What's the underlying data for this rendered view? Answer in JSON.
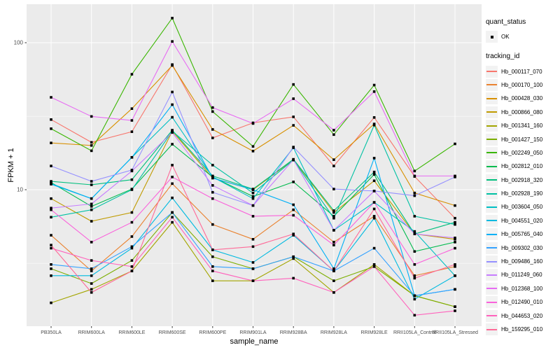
{
  "figure": {
    "background": "#FFFFFF",
    "panel_background": "#EBEBEB",
    "grid_color": "#FFFFFF",
    "axis_text_color": "#4D4D4D",
    "tick_color": "#333333"
  },
  "axes": {
    "x_title": "sample_name",
    "y_title": "FPKM + 1",
    "y_scale": "log10",
    "y_major_ticks": [
      {
        "label": "100",
        "value": 100
      },
      {
        "label": "10",
        "value": 10
      }
    ],
    "y_minor_breaks": [
      31.6,
      3.16
    ]
  },
  "legend": {
    "quant_title": "quant_status",
    "quant_items": [
      {
        "label": "OK",
        "glyph": "black-point"
      }
    ],
    "tracking_title": "tracking_id"
  },
  "chart_data": {
    "type": "line",
    "title": "",
    "xlabel": "sample_name",
    "ylabel": "FPKM + 1",
    "yscale": "log10",
    "ylim": [
      1.15,
      185
    ],
    "grid": true,
    "legend_position": "right",
    "marker": "black-square",
    "categories": [
      "PB350LA",
      "RRIM600LA",
      "RRIM600LE",
      "RRIM600SE",
      "RRIM600PE",
      "RRIM901LA",
      "RRIM928BA",
      "RRIM928LA",
      "RRIM928LE",
      "RRII105LA_Control",
      "RRII105LA_Stressed"
    ],
    "series": [
      {
        "name": "Hb_000117_070",
        "color": "#F8766D",
        "values": [
          30,
          21,
          24.8,
          71,
          22.5,
          28.5,
          31.3,
          14.5,
          31,
          12.3,
          6.4
        ]
      },
      {
        "name": "Hb_000170_100",
        "color": "#EA8331",
        "values": [
          4.9,
          2.8,
          4.8,
          11,
          5.8,
          4.6,
          7.3,
          4.4,
          6.6,
          2.6,
          3.0
        ]
      },
      {
        "name": "Hb_000428_030",
        "color": "#D89000",
        "values": [
          20.8,
          20,
          35.6,
          70,
          25.7,
          18.3,
          27.4,
          16,
          28,
          9.5,
          7.8
        ]
      },
      {
        "name": "Hb_000866_080",
        "color": "#C09B00",
        "values": [
          8.7,
          6.1,
          7.0,
          25,
          12,
          10,
          16,
          7.0,
          11.5,
          5.0,
          4.6
        ]
      },
      {
        "name": "Hb_001341_160",
        "color": "#A3A500",
        "values": [
          1.7,
          2.1,
          2.8,
          6.0,
          2.4,
          2.4,
          3.4,
          2.0,
          3.1,
          1.9,
          1.6
        ]
      },
      {
        "name": "Hb_001427_150",
        "color": "#7CAE00",
        "values": [
          2.9,
          2.3,
          3.3,
          7.0,
          3.5,
          2.9,
          3.5,
          2.4,
          3.0,
          1.9,
          1.6
        ]
      },
      {
        "name": "Hb_002249_050",
        "color": "#39B600",
        "values": [
          26,
          18.4,
          61,
          147,
          34,
          19.7,
          52,
          23.7,
          51.5,
          13.4,
          20.5
        ]
      },
      {
        "name": "Hb_002812_010",
        "color": "#00BB4E",
        "values": [
          11.2,
          7.7,
          10.1,
          20.4,
          12.2,
          9.0,
          11.3,
          6.6,
          12.7,
          3.8,
          4.4
        ]
      },
      {
        "name": "Hb_002918_320",
        "color": "#00BF7D",
        "values": [
          11.4,
          10.8,
          11.7,
          25.4,
          12.4,
          10.1,
          16.1,
          7.2,
          13.2,
          5.0,
          6.0
        ]
      },
      {
        "name": "Hb_002928_190",
        "color": "#00C1A3",
        "values": [
          6.5,
          7.3,
          10.0,
          25.0,
          14.7,
          9.5,
          15.9,
          6.4,
          27.5,
          6.6,
          5.8
        ]
      },
      {
        "name": "Hb_003604_050",
        "color": "#00BFC4",
        "values": [
          11.0,
          8.7,
          16.6,
          31.1,
          12.2,
          8.7,
          19.3,
          5.3,
          8.2,
          5.2,
          2.6
        ]
      },
      {
        "name": "Hb_004551_020",
        "color": "#00BAE0",
        "values": [
          2.6,
          2.6,
          4.0,
          8.8,
          3.9,
          3.2,
          4.9,
          2.8,
          6.4,
          1.8,
          2.6
        ]
      },
      {
        "name": "Hb_005765_040",
        "color": "#00B0F6",
        "values": [
          10.9,
          8.7,
          16.6,
          37.9,
          12.0,
          10.0,
          7.9,
          2.9,
          16.4,
          1.9,
          2.1
        ]
      },
      {
        "name": "Hb_009302_030",
        "color": "#35A2FF",
        "values": [
          3.1,
          2.9,
          4.1,
          7.0,
          3.0,
          2.9,
          3.5,
          2.8,
          4.0,
          1.9,
          2.1
        ]
      },
      {
        "name": "Hb_009486_160",
        "color": "#9590FF",
        "values": [
          14.5,
          11.4,
          13.6,
          46.2,
          9.6,
          7.8,
          19.5,
          10.1,
          9.8,
          9.1,
          12.2
        ]
      },
      {
        "name": "Hb_011249_060",
        "color": "#C77CFF",
        "values": [
          7.5,
          8.0,
          13.4,
          24.5,
          10.7,
          7.8,
          16.0,
          5.3,
          9.8,
          5.0,
          4.7
        ]
      },
      {
        "name": "Hb_012368_100",
        "color": "#E76BF3",
        "values": [
          42.5,
          31.5,
          29.6,
          102,
          36.2,
          28.2,
          41.6,
          25.4,
          46.5,
          12.4,
          12.4
        ]
      },
      {
        "name": "Hb_012490_010",
        "color": "#FA62DB",
        "values": [
          7.3,
          4.4,
          6.0,
          12.2,
          8.7,
          6.6,
          6.7,
          4.2,
          8.2,
          3.1,
          4.0
        ]
      },
      {
        "name": "Hb_044653_020",
        "color": "#FF62BC",
        "values": [
          4.0,
          3.3,
          3.0,
          6.5,
          2.8,
          2.4,
          2.5,
          2.0,
          3.0,
          1.4,
          1.5
        ]
      },
      {
        "name": "Hb_159295_010",
        "color": "#FF6A98",
        "values": [
          4.2,
          2.0,
          2.8,
          14.7,
          3.9,
          4.1,
          5.0,
          2.8,
          7.4,
          2.5,
          3.1
        ]
      }
    ]
  }
}
